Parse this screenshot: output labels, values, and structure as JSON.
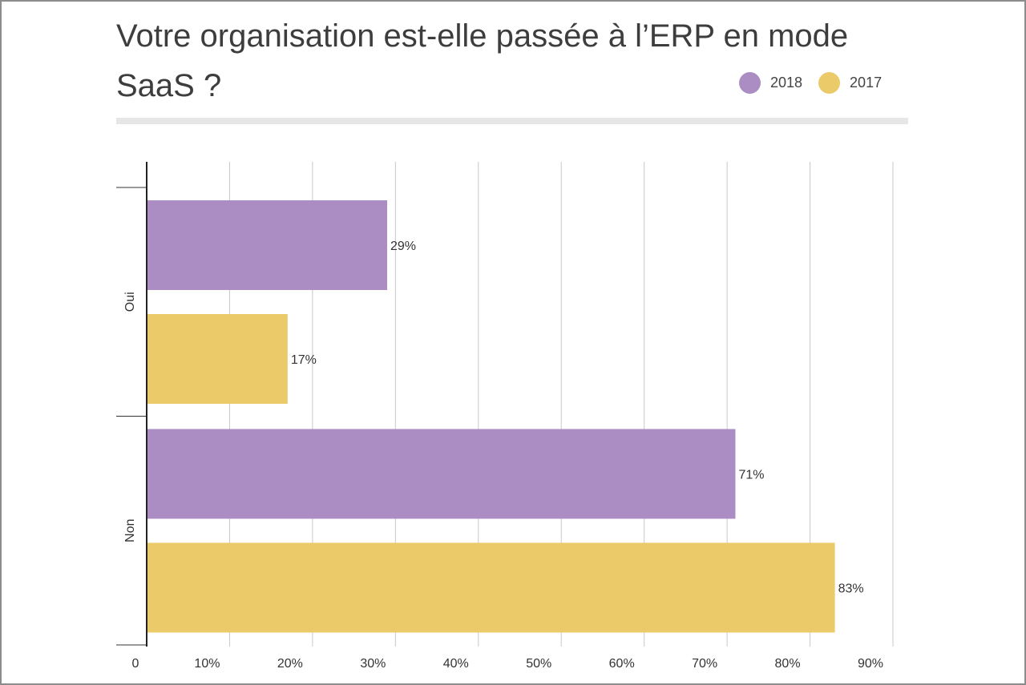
{
  "chart_data": {
    "type": "bar",
    "orientation": "horizontal",
    "title": "Votre organisation est-elle passée à l’ERP en mode SaaS ?",
    "categories": [
      "Oui",
      "Non"
    ],
    "series": [
      {
        "name": "2018",
        "color": "#ab8dc4",
        "values": [
          29,
          71
        ],
        "labels": [
          "29%",
          "71%"
        ]
      },
      {
        "name": "2017",
        "color": "#ebca6a",
        "values": [
          17,
          83
        ],
        "labels": [
          "17%",
          "83%"
        ]
      }
    ],
    "xlim": [
      0,
      90
    ],
    "xticks": [
      0,
      10,
      20,
      30,
      40,
      50,
      60,
      70,
      80,
      90
    ],
    "xtick_labels": [
      "0",
      "10%",
      "20%",
      "30%",
      "40%",
      "50%",
      "60%",
      "70%",
      "80%",
      "90%"
    ],
    "grid": true,
    "legend_position": "top-right"
  }
}
